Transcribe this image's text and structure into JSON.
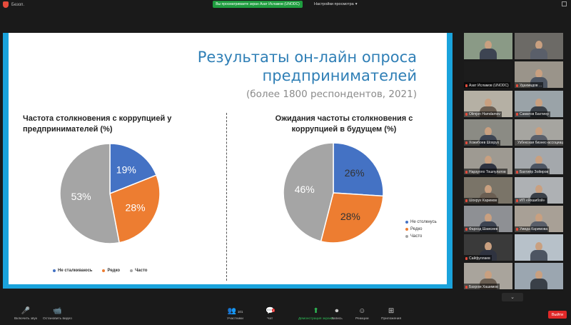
{
  "topbar": {
    "security_label": "Безоп.",
    "share_banner": "Вы просматриваете экран Азат Исламов (UNODC)",
    "view_options": "Настройки просмотра",
    "view_options_chevron": "▾"
  },
  "slide": {
    "title_line1": "Результаты он-лайн опроса",
    "title_line2": "предпринимателей",
    "subtitle": "(более 1800 респондентов, 2021)"
  },
  "chart_data": [
    {
      "type": "pie",
      "title": "Частота столкновения с коррупцией у предпринимателей (%)",
      "labels": [
        "Не сталкиваюсь",
        "Редко",
        "Часто"
      ],
      "values": [
        19,
        28,
        53
      ],
      "value_labels": [
        "19%",
        "28%",
        "53%"
      ],
      "colors": [
        "#4472c4",
        "#ed7d31",
        "#a5a5a5"
      ],
      "legend": "bottom"
    },
    {
      "type": "pie",
      "title": "Ожидания частоты столкновения с коррупцией в будущем (%)",
      "labels": [
        "Не столкнусь",
        "Редко",
        "Часто"
      ],
      "values": [
        26,
        28,
        46
      ],
      "value_labels": [
        "26%",
        "28%",
        "46%"
      ],
      "colors": [
        "#4472c4",
        "#ed7d31",
        "#a5a5a5"
      ],
      "legend": "right"
    }
  ],
  "gallery": {
    "tiles": [
      {
        "name": "",
        "bg": "#8a9a86"
      },
      {
        "name": "",
        "bg": "#6c6a66"
      },
      {
        "name": "Азат Исламов (UNODC)",
        "bg": "#1c1c1c"
      },
      {
        "name": "Удахмадов ...",
        "bg": "#9a948a"
      },
      {
        "name": "Olimjon Hamdamov",
        "bg": "#b5b0a4"
      },
      {
        "name": "Саматов Бахтиер",
        "bg": "#9aa3a8"
      },
      {
        "name": "Хожибоев Шохрух",
        "bg": "#8b8b84"
      },
      {
        "name": "Узбекская бизнес-ассоциация",
        "bg": "#a6a5a0"
      },
      {
        "name": "Нарзулло Тошпулатов",
        "bg": "#9e9a92"
      },
      {
        "name": "Бахтиёр Зойиров",
        "bg": "#a4a8ac"
      },
      {
        "name": "Шохрух Каримов",
        "bg": "#7a7468"
      },
      {
        "name": "ИП «Яхшибой»",
        "bg": "#aeb1b4"
      },
      {
        "name": "Фарход Шамсиев",
        "bg": "#8e9094"
      },
      {
        "name": "Умида Каримова",
        "bg": "#a8a096"
      },
      {
        "name": "Сайфуллаев",
        "bg": "#3a3a3a"
      },
      {
        "name": "",
        "bg": "#b7c1c9"
      },
      {
        "name": "Бахром Хашимов",
        "bg": "#a9a49c"
      },
      {
        "name": "",
        "bg": "#9ba6b0"
      }
    ],
    "nav_icon": "⌄"
  },
  "toolbar": {
    "buttons": [
      {
        "id": "mute",
        "icon": "🎤",
        "label": "Включить звук"
      },
      {
        "id": "video",
        "icon": "📹",
        "label": "Остановить видео"
      },
      {
        "id": "participants",
        "icon": "👥",
        "label": "Участники",
        "count": "101"
      },
      {
        "id": "chat",
        "icon": "💬",
        "label": "Чат",
        "badge": "1"
      },
      {
        "id": "share",
        "icon": "⬆",
        "label": "Демонстрация экрана"
      },
      {
        "id": "record",
        "icon": "⏺",
        "label": "Запись"
      },
      {
        "id": "reactions",
        "icon": "☺",
        "label": "Реакции"
      },
      {
        "id": "apps",
        "icon": "⊞",
        "label": "Приложения"
      }
    ],
    "end_label": "Выйти"
  }
}
